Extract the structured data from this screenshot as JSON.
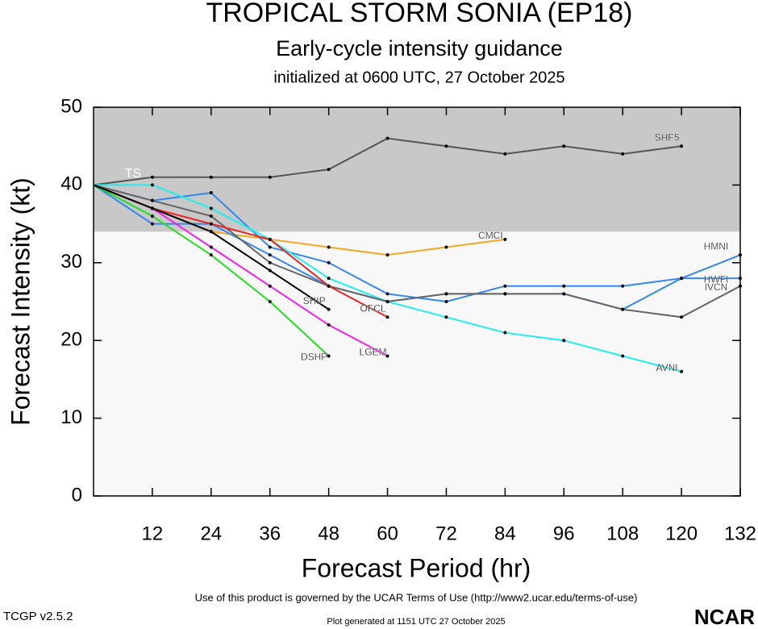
{
  "chart_data": {
    "type": "line",
    "title": "TROPICAL STORM SONIA (EP18)",
    "subtitle": "Early-cycle intensity guidance",
    "subtitle2": "initialized at 0600 UTC, 27 October 2025",
    "xlabel": "Forecast Period (hr)",
    "ylabel": "Forecast Intensity (kt)",
    "x": [
      0,
      12,
      24,
      36,
      48,
      60,
      72,
      84,
      96,
      108,
      120,
      132
    ],
    "xlim": [
      0,
      132
    ],
    "xticks": [
      12,
      24,
      36,
      48,
      60,
      72,
      84,
      96,
      108,
      120,
      132
    ],
    "ylim": [
      0,
      50
    ],
    "yticks": [
      0,
      10,
      20,
      30,
      40,
      50
    ],
    "ts_threshold": 34,
    "ts_label": "TS",
    "series": [
      {
        "name": "SHF5",
        "color": "#555555",
        "values": [
          40,
          41,
          41,
          41,
          42,
          46,
          45,
          44,
          45,
          44,
          45,
          null
        ]
      },
      {
        "name": "CMCI",
        "color": "#f5a623",
        "values": [
          40,
          37,
          34,
          33,
          32,
          31,
          32,
          33,
          null,
          null,
          null,
          null
        ]
      },
      {
        "name": "HWFI",
        "color": "#3388ee",
        "values": [
          40,
          38,
          39,
          32,
          30,
          26,
          25,
          27,
          27,
          27,
          28,
          28
        ]
      },
      {
        "name": "HMNI",
        "color": "#3388ee",
        "values": [
          40,
          35,
          35,
          31,
          27,
          25,
          26,
          26,
          26,
          24,
          28,
          31
        ]
      },
      {
        "name": "AVNI",
        "color": "#22eeee",
        "values": [
          40,
          40,
          37,
          33,
          28,
          25,
          23,
          21,
          20,
          18,
          16,
          null
        ]
      },
      {
        "name": "IVCN",
        "color": "#666666",
        "values": [
          40,
          38,
          36,
          30,
          27,
          25,
          26,
          26,
          26,
          24,
          23,
          27
        ]
      },
      {
        "name": "OFCL",
        "color": "#ee2222",
        "values": [
          40,
          37,
          35,
          33,
          27,
          23,
          null,
          null,
          null,
          null,
          null,
          null
        ]
      },
      {
        "name": "LGEM",
        "color": "#ee22ee",
        "values": [
          40,
          37,
          32,
          27,
          22,
          18,
          null,
          null,
          null,
          null,
          null,
          null
        ]
      },
      {
        "name": "DSHP",
        "color": "#22dd22",
        "values": [
          40,
          36,
          31,
          25,
          18,
          null,
          null,
          null,
          null,
          null,
          null,
          null
        ]
      },
      {
        "name": "SHIP",
        "color": "#000000",
        "values": [
          40,
          37,
          34,
          29,
          24,
          null,
          null,
          null,
          null,
          null,
          null,
          null
        ]
      }
    ]
  },
  "footer": {
    "terms": "Use of this product is governed by the UCAR Terms of Use (http://www2.ucar.edu/terms-of-use)",
    "version": "TCGP v2.5.2",
    "generated": "Plot generated at 1151 UTC   27 October 2025",
    "logo": "NCAR"
  }
}
